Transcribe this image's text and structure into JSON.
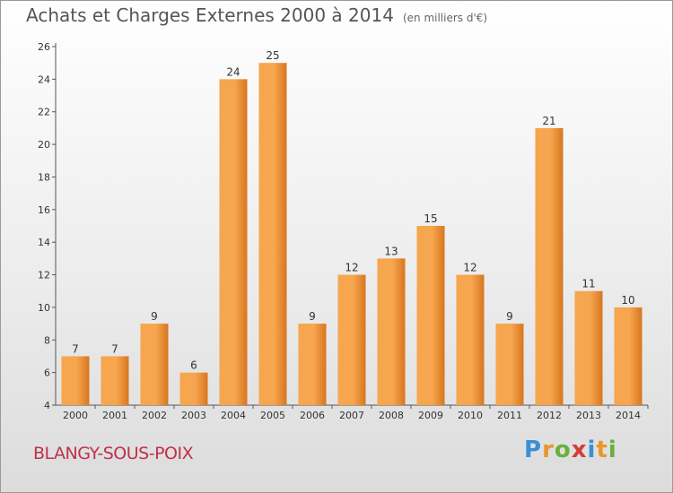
{
  "title": "Achats et Charges Externes 2000 à 2014",
  "subtitle": "(en milliers d'€)",
  "commune": "BLANGY-SOUS-POIX",
  "logo": {
    "letters": [
      "P",
      "r",
      "o",
      "x",
      "i",
      "t",
      "i"
    ],
    "colors": [
      "#3a8fd4",
      "#e9962b",
      "#67b13a",
      "#d83a3a",
      "#3a8fd4",
      "#e9962b",
      "#67b13a"
    ]
  },
  "colors": {
    "bar_light": "#f6a64e",
    "bar_dark": "#d8761f",
    "axis": "#555555"
  },
  "chart_data": {
    "type": "bar",
    "categories": [
      "2000",
      "2001",
      "2002",
      "2003",
      "2004",
      "2005",
      "2006",
      "2007",
      "2008",
      "2009",
      "2010",
      "2011",
      "2012",
      "2013",
      "2014"
    ],
    "values": [
      7,
      7,
      9,
      6,
      24,
      25,
      9,
      12,
      13,
      15,
      12,
      9,
      21,
      11,
      10
    ],
    "value_labels": [
      "7",
      "7",
      "9",
      "6",
      "24",
      "25",
      "9",
      "12",
      "13",
      "15",
      "12",
      "9",
      "21",
      "11",
      "10"
    ],
    "title": "Achats et Charges Externes 2000 à 2014",
    "subtitle": "(en milliers d'€)",
    "xlabel": "",
    "ylabel": "",
    "ylim": [
      4,
      26
    ],
    "yticks": [
      "4",
      "6",
      "8",
      "10",
      "12",
      "14",
      "16",
      "18",
      "20",
      "22",
      "24",
      "26"
    ],
    "grid": false
  }
}
